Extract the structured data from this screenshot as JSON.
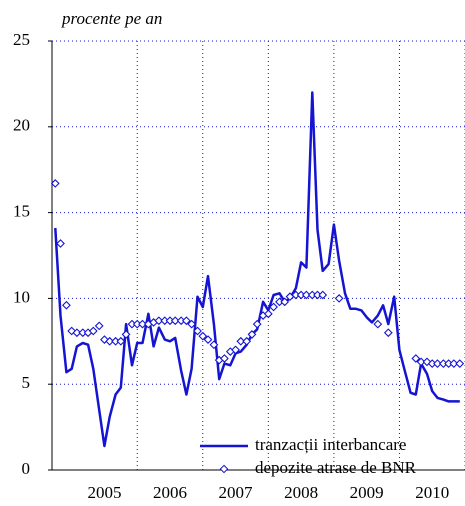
{
  "chart_data": {
    "type": "line",
    "subtitle": "procente pe an",
    "x": [
      2004.75,
      2004.83,
      2004.92,
      2005.0,
      2005.08,
      2005.17,
      2005.25,
      2005.33,
      2005.42,
      2005.5,
      2005.58,
      2005.67,
      2005.75,
      2005.83,
      2005.92,
      2006.0,
      2006.08,
      2006.17,
      2006.25,
      2006.33,
      2006.42,
      2006.5,
      2006.58,
      2006.67,
      2006.75,
      2006.83,
      2006.92,
      2007.0,
      2007.08,
      2007.17,
      2007.25,
      2007.33,
      2007.42,
      2007.5,
      2007.58,
      2007.67,
      2007.75,
      2007.83,
      2007.92,
      2008.0,
      2008.08,
      2008.17,
      2008.25,
      2008.33,
      2008.42,
      2008.5,
      2008.58,
      2008.67,
      2008.75,
      2008.83,
      2008.92,
      2009.0,
      2009.08,
      2009.17,
      2009.25,
      2009.33,
      2009.42,
      2009.5,
      2009.58,
      2009.67,
      2009.75,
      2009.83,
      2009.92,
      2010.0,
      2010.08,
      2010.17,
      2010.25,
      2010.33,
      2010.42,
      2010.5,
      2010.58,
      2010.67,
      2010.75,
      2010.83,
      2010.92
    ],
    "series": [
      {
        "name": "tranzacții interbancare",
        "color": "#1414d2",
        "style": "line",
        "values": [
          14.1,
          9.0,
          5.7,
          5.9,
          7.2,
          7.4,
          7.3,
          5.9,
          3.5,
          1.4,
          3.1,
          4.4,
          4.8,
          8.5,
          6.1,
          7.4,
          7.4,
          9.1,
          7.2,
          8.3,
          7.6,
          7.5,
          7.7,
          5.8,
          4.4,
          5.9,
          10.1,
          9.5,
          11.3,
          8.5,
          5.3,
          6.2,
          6.1,
          6.8,
          6.9,
          7.3,
          7.9,
          8.2,
          9.8,
          9.3,
          10.2,
          10.3,
          9.8,
          10.0,
          10.6,
          12.1,
          11.8,
          22.0,
          14.0,
          11.6,
          12.0,
          14.3,
          12.2,
          10.3,
          9.4,
          9.4,
          9.3,
          8.9,
          8.6,
          9.0,
          9.6,
          8.5,
          10.1,
          7.0,
          5.8,
          4.5,
          4.4,
          6.2,
          5.6,
          4.6,
          4.2,
          4.1,
          4.0,
          4.0,
          4.0
        ]
      },
      {
        "name": "depozite atrase de BNR",
        "color": "#1414d2",
        "style": "diamond",
        "values": [
          16.7,
          13.2,
          9.6,
          8.1,
          8.0,
          8.0,
          8.0,
          8.1,
          8.4,
          7.6,
          7.5,
          7.5,
          7.5,
          7.9,
          8.5,
          8.5,
          8.5,
          8.5,
          8.6,
          8.7,
          8.7,
          8.7,
          8.7,
          8.7,
          8.7,
          8.5,
          8.1,
          7.8,
          7.6,
          7.3,
          6.4,
          6.5,
          6.9,
          7.0,
          7.5,
          7.5,
          7.9,
          8.5,
          9.0,
          9.1,
          9.5,
          9.8,
          9.8,
          10.1,
          10.2,
          10.2,
          10.2,
          10.2,
          10.2,
          10.2,
          null,
          null,
          10.0,
          null,
          null,
          null,
          null,
          null,
          null,
          8.5,
          null,
          8.0,
          null,
          null,
          null,
          null,
          6.5,
          6.3,
          6.3,
          6.2,
          6.2,
          6.2,
          6.2,
          6.2,
          6.2
        ]
      }
    ],
    "xlim": [
      2004.7,
      2011.0
    ],
    "xticks": [
      {
        "value": 2005.5,
        "label": "2005"
      },
      {
        "value": 2006.5,
        "label": "2006"
      },
      {
        "value": 2007.5,
        "label": "2007"
      },
      {
        "value": 2008.5,
        "label": "2008"
      },
      {
        "value": 2009.5,
        "label": "2009"
      },
      {
        "value": 2010.5,
        "label": "2010"
      }
    ],
    "ylim": [
      0,
      25
    ],
    "yticks": [
      0,
      5,
      10,
      15,
      20,
      25
    ],
    "grid": true,
    "legend": "bottom-right"
  }
}
